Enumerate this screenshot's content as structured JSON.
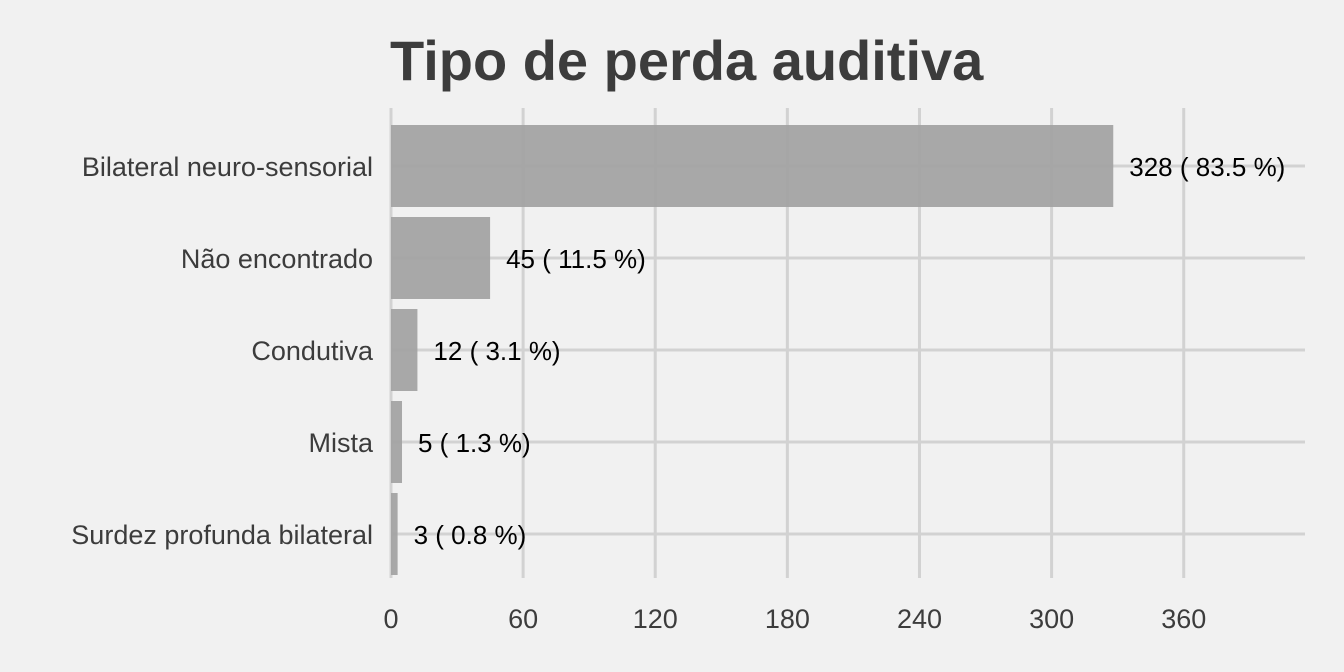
{
  "chart_data": {
    "type": "bar",
    "orientation": "horizontal",
    "title": "Tipo de perda auditiva",
    "xlabel": "",
    "ylabel": "",
    "categories": [
      "Bilateral neuro-sensorial",
      "Não encontrado",
      "Condutiva",
      "Mista",
      "Surdez profunda bilateral"
    ],
    "values": [
      328,
      45,
      12,
      5,
      3
    ],
    "data_labels": [
      "328 ( 83.5 %)",
      "45 ( 11.5 %)",
      "12 ( 3.1 %)",
      "5 ( 1.3 %)",
      "3 ( 0.8 %)"
    ],
    "xticks": [
      0,
      60,
      120,
      180,
      240,
      300,
      360
    ],
    "xlim": [
      0,
      415
    ],
    "grid": true,
    "legend": "none",
    "colors": {
      "background": "#f1f1f1",
      "bar": "#a3a3a3",
      "grid": "#d2d2d2",
      "text": "#3c3c3c",
      "data_label": "#000000"
    }
  }
}
